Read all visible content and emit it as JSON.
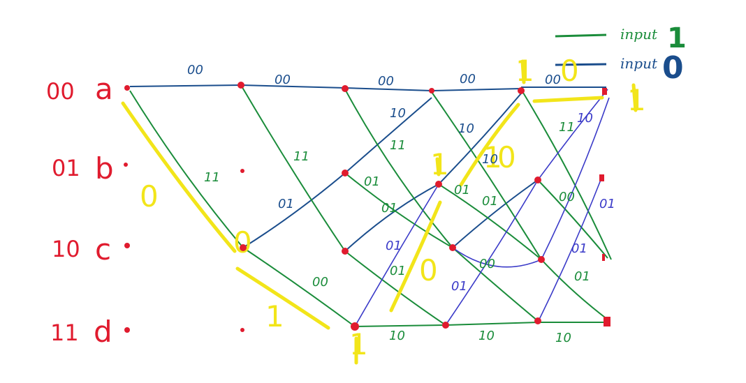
{
  "colors": {
    "input_one": "#1a8c3a",
    "input_zero": "#1a4d8c",
    "extra_blue": "#3a3ac8",
    "state": "#e01b2e",
    "highlight": "#f2e51a"
  },
  "legend": [
    {
      "label": "input",
      "symbol": "1",
      "color": "#1a8c3a"
    },
    {
      "label": "input",
      "symbol": "0",
      "color": "#1a4d8c"
    }
  ],
  "states": [
    {
      "code": "00",
      "name": "a"
    },
    {
      "code": "01",
      "name": "b"
    },
    {
      "code": "10",
      "name": "c"
    },
    {
      "code": "11",
      "name": "d"
    }
  ],
  "edge_labels": [
    {
      "text": "00",
      "color": "#1a4d8c"
    },
    {
      "text": "00",
      "color": "#1a4d8c"
    },
    {
      "text": "00",
      "color": "#1a4d8c"
    },
    {
      "text": "00",
      "color": "#1a4d8c"
    },
    {
      "text": "00",
      "color": "#1a4d8c"
    },
    {
      "text": "11",
      "color": "#1a8c3a"
    },
    {
      "text": "11",
      "color": "#1a8c3a"
    },
    {
      "text": "11",
      "color": "#1a8c3a"
    },
    {
      "text": "11",
      "color": "#1a8c3a"
    },
    {
      "text": "10",
      "color": "#1a4d8c"
    },
    {
      "text": "10",
      "color": "#1a4d8c"
    },
    {
      "text": "10",
      "color": "#1a4d8c"
    },
    {
      "text": "01",
      "color": "#1a4d8c"
    },
    {
      "text": "01",
      "color": "#1a8c3a"
    },
    {
      "text": "01",
      "color": "#1a8c3a"
    },
    {
      "text": "01",
      "color": "#1a8c3a"
    },
    {
      "text": "01",
      "color": "#1a8c3a"
    },
    {
      "text": "01",
      "color": "#3a3ac8"
    },
    {
      "text": "01",
      "color": "#1a8c3a"
    },
    {
      "text": "01",
      "color": "#3a3ac8"
    },
    {
      "text": "01",
      "color": "#3a3ac8"
    },
    {
      "text": "01",
      "color": "#1a8c3a"
    },
    {
      "text": "01",
      "color": "#3a3ac8"
    },
    {
      "text": "00",
      "color": "#1a8c3a"
    },
    {
      "text": "00",
      "color": "#1a8c3a"
    },
    {
      "text": "10",
      "color": "#1a8c3a"
    },
    {
      "text": "10",
      "color": "#1a8c3a"
    },
    {
      "text": "10",
      "color": "#1a8c3a"
    },
    {
      "text": "10",
      "color": "#3a3ac8"
    },
    {
      "text": "00",
      "color": "#1a8c3a"
    }
  ],
  "yellow_marks": [
    "0",
    "0",
    "1",
    "1",
    "0",
    "1",
    "1",
    "0",
    "0",
    "1",
    "1"
  ]
}
